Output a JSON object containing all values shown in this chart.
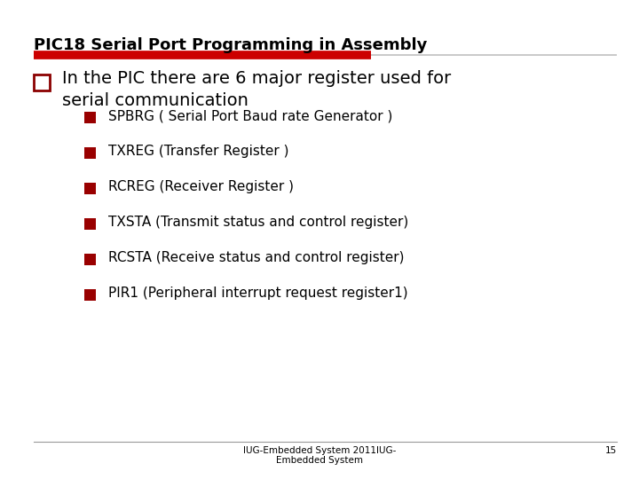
{
  "title": "PIC18 Serial Port Programming in Assembly",
  "bg_color": "#ffffff",
  "title_color": "#000000",
  "title_fontsize": 13,
  "divider_color_left": "#CC0000",
  "divider_color_right": "#C0C0C0",
  "main_bullet_text_line1": "In the PIC there are 6 major register used for",
  "main_bullet_text_line2": "serial communication",
  "main_bullet_color": "#8B0000",
  "sub_bullets": [
    "SPBRG ( Serial Port Baud rate Generator )",
    "TXREG (Transfer Register )",
    "RCREG (Receiver Register )",
    "TXSTA (Transmit status and control register)",
    "RCSTA (Receive status and control register)",
    "PIR1 (Peripheral interrupt request register1)"
  ],
  "sub_bullet_color": "#990000",
  "text_color": "#000000",
  "footer_line1": "IUG-Embedded System 2011IUG-",
  "footer_line2": "Embedded System",
  "footer_page": "15",
  "footer_color": "#000000",
  "footer_fontsize": 7.5
}
